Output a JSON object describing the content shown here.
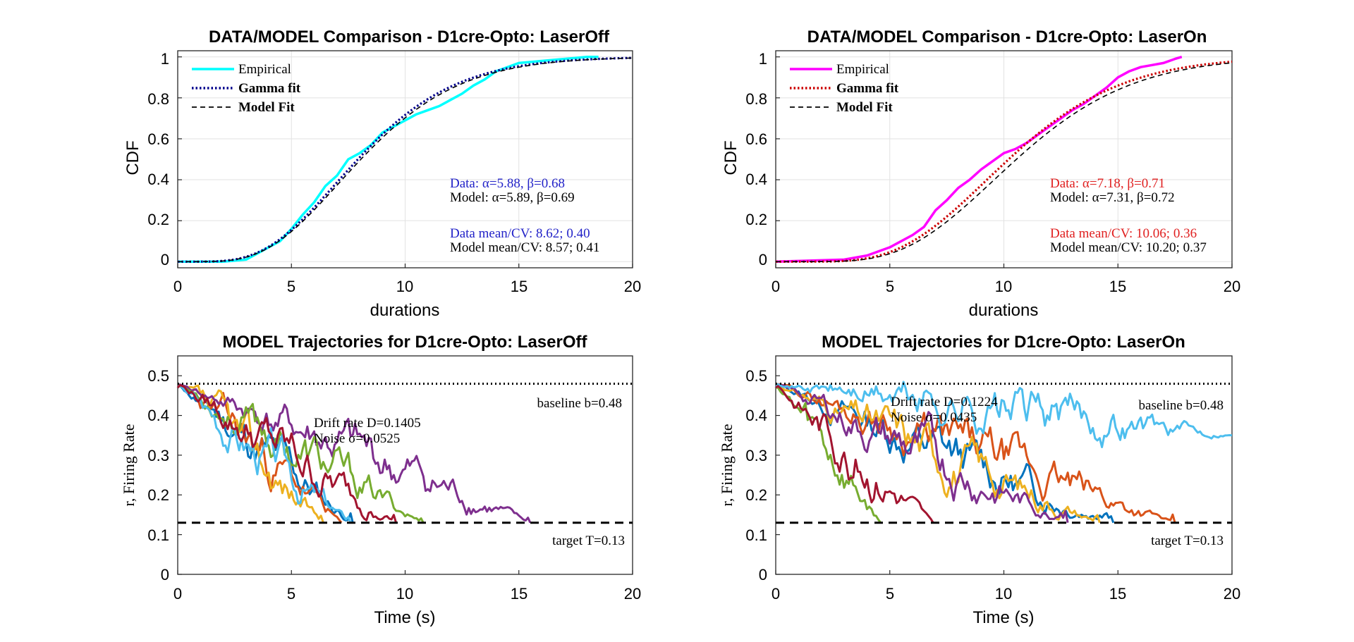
{
  "colors": {
    "cyan": "#00FFFF",
    "magenta": "#FF00FF",
    "navy": "#00008B",
    "darkred": "#CC0000",
    "blue_text": "#2323C8",
    "red_text": "#E02020",
    "traj": [
      "#0072BD",
      "#D95319",
      "#EDB120",
      "#7E2F8E",
      "#77AC30",
      "#4DBEEE",
      "#A2142F"
    ]
  },
  "chart_data": [
    {
      "type": "line",
      "title": "DATA/MODEL Comparison - D1cre-Opto: LaserOff",
      "xlabel": "durations",
      "ylabel": "CDF",
      "xlim": [
        0,
        20
      ],
      "ylim": [
        -0.03,
        1.03
      ],
      "xticks": [
        "0",
        "5",
        "10",
        "15",
        "20"
      ],
      "yticks": [
        "0",
        "0.2",
        "0.4",
        "0.6",
        "0.8",
        "1"
      ],
      "grid": true,
      "legend_position": "top-left",
      "series": [
        {
          "name": "Empirical",
          "color": "#00FFFF",
          "x": [
            0,
            2,
            3,
            3.5,
            4,
            4.5,
            5,
            5.5,
            6,
            6.5,
            7,
            7.5,
            8,
            8.5,
            9,
            9.5,
            10,
            10.5,
            11,
            11.5,
            12,
            12.5,
            13,
            13.5,
            14,
            15,
            16,
            17,
            18,
            18.5
          ],
          "y": [
            0,
            0,
            0.01,
            0.04,
            0.07,
            0.1,
            0.16,
            0.23,
            0.29,
            0.37,
            0.42,
            0.5,
            0.53,
            0.57,
            0.63,
            0.66,
            0.69,
            0.72,
            0.74,
            0.76,
            0.79,
            0.82,
            0.86,
            0.89,
            0.93,
            0.97,
            0.98,
            0.99,
            1.0,
            1.0
          ]
        },
        {
          "name": "Gamma fit",
          "color": "#00008B",
          "alpha": 5.88,
          "beta": 0.68
        },
        {
          "name": "Model Fit",
          "color": "#000000",
          "alpha": 5.89,
          "beta": 0.69
        }
      ],
      "annotations": {
        "data_params": "Data: α=5.88, β=0.68",
        "model_params": "Model: α=5.89, β=0.69",
        "data_mean_cv": "Data mean/CV: 8.62; 0.40",
        "model_mean_cv": "Model mean/CV: 8.57; 0.41"
      }
    },
    {
      "type": "line",
      "title": "DATA/MODEL Comparison - D1cre-Opto: LaserOn",
      "xlabel": "durations",
      "ylabel": "CDF",
      "xlim": [
        0,
        20
      ],
      "ylim": [
        -0.03,
        1.03
      ],
      "xticks": [
        "0",
        "5",
        "10",
        "15",
        "20"
      ],
      "yticks": [
        "0",
        "0.2",
        "0.4",
        "0.6",
        "0.8",
        "1"
      ],
      "grid": true,
      "legend_position": "top-left",
      "series": [
        {
          "name": "Empirical",
          "color": "#FF00FF",
          "x": [
            0,
            3,
            4,
            5,
            6,
            6.5,
            7,
            7.5,
            8,
            8.5,
            9,
            9.5,
            10,
            10.5,
            11,
            11.5,
            12,
            12.5,
            13,
            13.5,
            14,
            14.5,
            15,
            15.5,
            16,
            16.5,
            17,
            17.5,
            17.8
          ],
          "y": [
            0,
            0.01,
            0.03,
            0.07,
            0.13,
            0.17,
            0.25,
            0.3,
            0.36,
            0.4,
            0.45,
            0.49,
            0.53,
            0.55,
            0.58,
            0.62,
            0.66,
            0.7,
            0.74,
            0.77,
            0.81,
            0.85,
            0.9,
            0.93,
            0.95,
            0.96,
            0.97,
            0.99,
            1.0
          ]
        },
        {
          "name": "Gamma fit",
          "color": "#CC0000",
          "alpha": 7.18,
          "beta": 0.71
        },
        {
          "name": "Model Fit",
          "color": "#000000",
          "alpha": 7.31,
          "beta": 0.72
        }
      ],
      "annotations": {
        "data_params": "Data: α=7.18, β=0.71",
        "model_params": "Model: α=7.31, β=0.72",
        "data_mean_cv": "Data mean/CV: 10.06; 0.36",
        "model_mean_cv": "Model mean/CV: 10.20; 0.37"
      }
    },
    {
      "type": "line",
      "title": "MODEL Trajectories for D1cre-Opto: LaserOff",
      "xlabel": "Time (s)",
      "ylabel": "r, Firing Rate",
      "xlim": [
        0,
        20
      ],
      "ylim": [
        0,
        0.55
      ],
      "xticks": [
        "0",
        "5",
        "10",
        "15",
        "20"
      ],
      "yticks": [
        "0",
        "0.1",
        "0.2",
        "0.3",
        "0.4",
        "0.5"
      ],
      "grid": false,
      "baseline": 0.48,
      "target": 0.13,
      "annotations": {
        "baseline_label": "baseline b=0.48",
        "target_label": "target T=0.13",
        "drift_label": "Drift rate D=0.1405",
        "noise_label": "Noise σ=0.0525"
      },
      "trajectories": [
        {
          "end": 7.7,
          "seed": 11
        },
        {
          "end": 7.2,
          "seed": 23
        },
        {
          "end": 6.4,
          "seed": 37
        },
        {
          "end": 15.5,
          "seed": 41
        },
        {
          "end": 10.8,
          "seed": 53
        },
        {
          "end": 7.6,
          "seed": 67
        },
        {
          "end": 9.6,
          "seed": 79
        }
      ]
    },
    {
      "type": "line",
      "title": "MODEL Trajectories for D1cre-Opto: LaserOn",
      "xlabel": "Time (s)",
      "ylabel": "r, Firing Rate",
      "xlim": [
        0,
        20
      ],
      "ylim": [
        0,
        0.55
      ],
      "xticks": [
        "0",
        "5",
        "10",
        "15",
        "20"
      ],
      "yticks": [
        "0",
        "0.1",
        "0.2",
        "0.3",
        "0.4",
        "0.5"
      ],
      "grid": false,
      "baseline": 0.48,
      "target": 0.13,
      "annotations": {
        "baseline_label": "baseline b=0.48",
        "target_label": "target T=0.13",
        "drift_label": "Drift rate D=0.1224",
        "noise_label": "Noise σ=0.0435"
      },
      "trajectories": [
        {
          "end": 14.8,
          "seed": 13
        },
        {
          "end": 17.5,
          "seed": 29
        },
        {
          "end": 14.2,
          "seed": 31
        },
        {
          "end": 12.8,
          "seed": 43
        },
        {
          "end": 4.6,
          "seed": 59
        },
        {
          "end": 20.0,
          "seed": 71,
          "endval": 0.35
        },
        {
          "end": 6.9,
          "seed": 83
        }
      ]
    }
  ]
}
